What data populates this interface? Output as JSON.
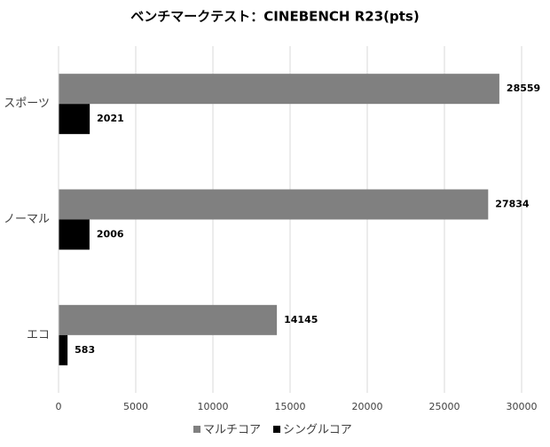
{
  "chart_data": {
    "type": "hbar",
    "title": "ベンチマークテスト：CINEBENCH R23(pts)",
    "categories": [
      "スポーツ",
      "ノーマル",
      "エコ"
    ],
    "series": [
      {
        "name": "マルチコア",
        "color": "#808080",
        "values": [
          28559,
          27834,
          14145
        ]
      },
      {
        "name": "シングルコア",
        "color": "#000000",
        "values": [
          2021,
          2006,
          583
        ]
      }
    ],
    "xlim": [
      0,
      30000
    ],
    "xticks": [
      0,
      5000,
      10000,
      15000,
      20000,
      25000,
      30000
    ],
    "grid": true,
    "legend": "bottom"
  }
}
